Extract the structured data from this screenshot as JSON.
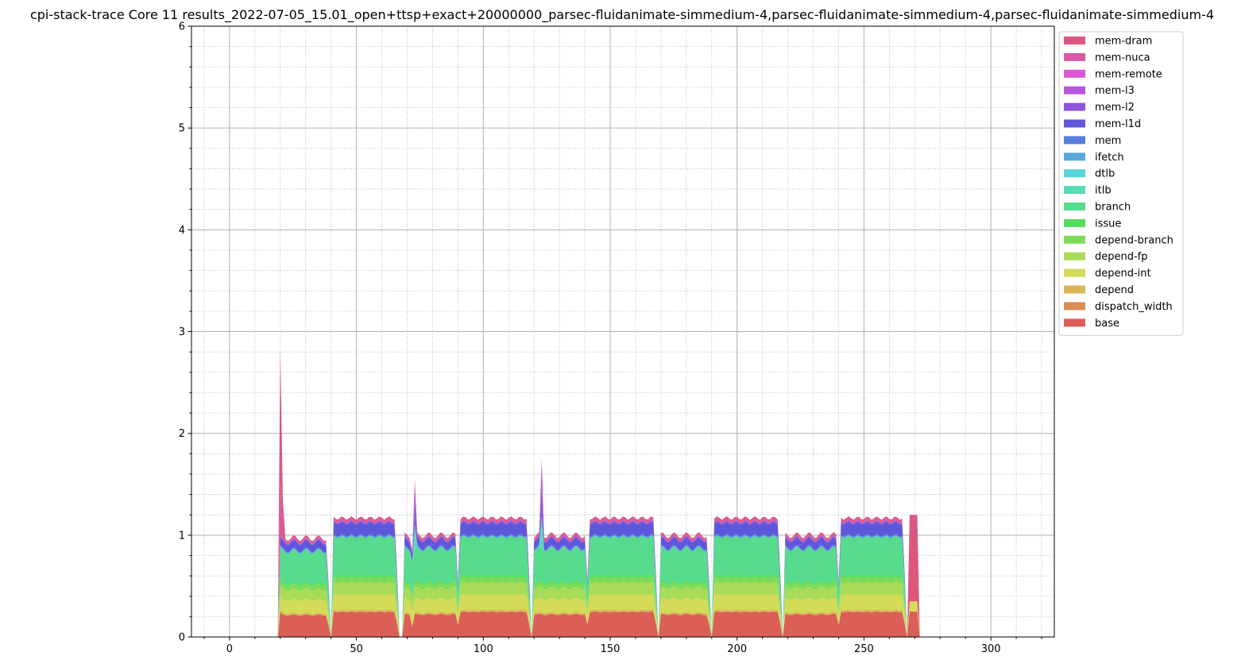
{
  "chart_data": {
    "type": "area",
    "title": "cpi-stack-trace Core 11 results_2022-07-05_15.01_open+ttsp+exact+20000000_parsec-fluidanimate-simmedium-4,parsec-fluidanimate-simmedium-4,parsec-fluidanimate-simmedium-4",
    "xlabel": "",
    "ylabel": "",
    "xlim": [
      -15,
      325
    ],
    "ylim": [
      0,
      6
    ],
    "x_ticks": [
      0,
      50,
      100,
      150,
      200,
      250,
      300
    ],
    "y_ticks": [
      0,
      1,
      2,
      3,
      4,
      5,
      6
    ],
    "grid": true,
    "legend_position": "outside-top-right",
    "stacked": true,
    "components": [
      {
        "name": "base",
        "color": "#db5f57"
      },
      {
        "name": "dispatch_width",
        "color": "#db8c57"
      },
      {
        "name": "depend",
        "color": "#dbb657"
      },
      {
        "name": "depend-int",
        "color": "#d3db57"
      },
      {
        "name": "depend-fp",
        "color": "#a8db57"
      },
      {
        "name": "depend-branch",
        "color": "#7edb57"
      },
      {
        "name": "issue",
        "color": "#57db5f"
      },
      {
        "name": "branch",
        "color": "#57db8c"
      },
      {
        "name": "itlb",
        "color": "#57dbb6"
      },
      {
        "name": "dtlb",
        "color": "#57d3db"
      },
      {
        "name": "ifetch",
        "color": "#57a8db"
      },
      {
        "name": "mem",
        "color": "#577edb"
      },
      {
        "name": "mem-l1d",
        "color": "#5f57db"
      },
      {
        "name": "mem-l2",
        "color": "#8c57db"
      },
      {
        "name": "mem-l3",
        "color": "#b657db"
      },
      {
        "name": "mem-remote",
        "color": "#db57d3"
      },
      {
        "name": "mem-nuca",
        "color": "#db57a8"
      },
      {
        "name": "mem-dram",
        "color": "#db577e"
      }
    ],
    "active_phases": [
      {
        "x_range": [
          20,
          39
        ],
        "level": "low",
        "total_cpi": 1.05
      },
      {
        "x_range": [
          41,
          66
        ],
        "level": "high",
        "total_cpi": 1.18
      },
      {
        "x_range": [
          69,
          90
        ],
        "level": "low",
        "total_cpi": 1.08
      },
      {
        "x_range": [
          91,
          118
        ],
        "level": "high",
        "total_cpi": 1.18
      },
      {
        "x_range": [
          120,
          141
        ],
        "level": "low",
        "total_cpi": 1.08
      },
      {
        "x_range": [
          142,
          168
        ],
        "level": "high",
        "total_cpi": 1.18
      },
      {
        "x_range": [
          170,
          189
        ],
        "level": "low",
        "total_cpi": 1.08
      },
      {
        "x_range": [
          191,
          217
        ],
        "level": "high",
        "total_cpi": 1.18
      },
      {
        "x_range": [
          219,
          240
        ],
        "level": "low",
        "total_cpi": 1.08
      },
      {
        "x_range": [
          241,
          266
        ],
        "level": "high",
        "total_cpi": 1.18
      },
      {
        "x_range": [
          268,
          271
        ],
        "level": "tail",
        "total_cpi": 1.2
      }
    ],
    "stack_profile": {
      "base": 0.25,
      "dispatch_width": 0.0,
      "depend": 0.02,
      "depend-int": 0.15,
      "depend-fp": 0.12,
      "depend-branch": 0.05,
      "issue": 0.02,
      "branch": 0.38,
      "itlb": 0.0,
      "dtlb": 0.0,
      "ifetch": 0.01,
      "mem": 0.01,
      "mem-l1d": 0.12,
      "mem-l2": 0.01,
      "mem-l3": 0.0,
      "mem-remote": 0.0,
      "mem-nuca": 0.02,
      "mem-dram": 0.02
    },
    "peaks": [
      {
        "x": 20,
        "total_cpi": 2.8
      },
      {
        "x": 73,
        "total_cpi": 1.55
      },
      {
        "x": 123,
        "total_cpi": 1.75
      }
    ]
  }
}
